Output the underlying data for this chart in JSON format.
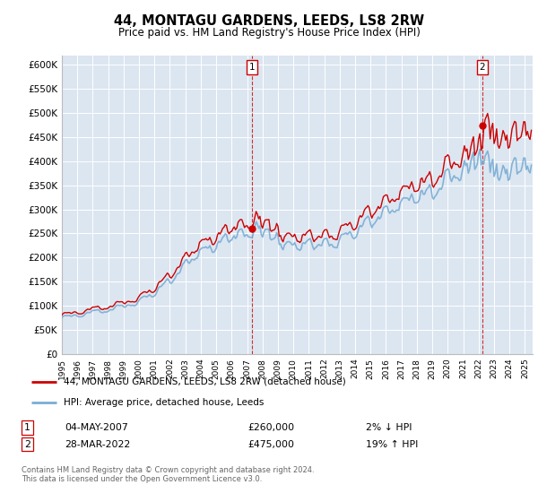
{
  "title": "44, MONTAGU GARDENS, LEEDS, LS8 2RW",
  "subtitle": "Price paid vs. HM Land Registry's House Price Index (HPI)",
  "background_color": "#dce6f1",
  "plot_bg_color": "#dce6f1",
  "ylim": [
    0,
    620000
  ],
  "yticks": [
    0,
    50000,
    100000,
    150000,
    200000,
    250000,
    300000,
    350000,
    400000,
    450000,
    500000,
    550000,
    600000
  ],
  "ytick_labels": [
    "£0",
    "£50K",
    "£100K",
    "£150K",
    "£200K",
    "£250K",
    "£300K",
    "£350K",
    "£400K",
    "£450K",
    "£500K",
    "£550K",
    "£600K"
  ],
  "hpi_color": "#7aadd4",
  "price_color": "#cc0000",
  "marker1_x": 2007.33,
  "marker1_y": 260000,
  "marker2_x": 2022.25,
  "marker2_y": 475000,
  "annotation1_date": "04-MAY-2007",
  "annotation1_price": "£260,000",
  "annotation1_note": "2% ↓ HPI",
  "annotation2_date": "28-MAR-2022",
  "annotation2_price": "£475,000",
  "annotation2_note": "19% ↑ HPI",
  "legend_label1": "44, MONTAGU GARDENS, LEEDS, LS8 2RW (detached house)",
  "legend_label2": "HPI: Average price, detached house, Leeds",
  "footer": "Contains HM Land Registry data © Crown copyright and database right 2024.\nThis data is licensed under the Open Government Licence v3.0.",
  "xmin": 1995,
  "xmax": 2025.5
}
